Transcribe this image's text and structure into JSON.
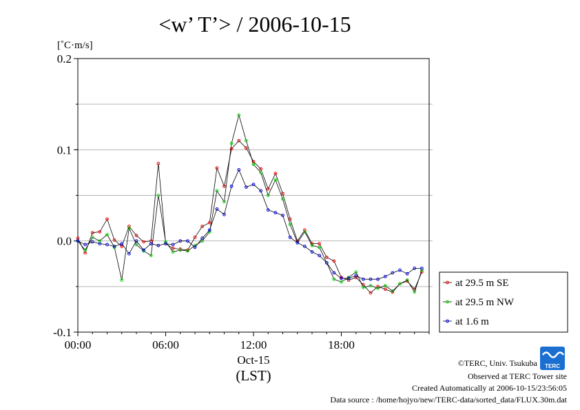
{
  "chart_data": {
    "type": "line",
    "title": "<w’ T’> / 2006-10-15",
    "ylabel": "[˚C·m/s]",
    "xlabel": "(LST)",
    "date_label": "Oct-15",
    "ylim": [
      -0.1,
      0.2
    ],
    "xlim": [
      0,
      24
    ],
    "y_ticks": [
      {
        "value": -0.1,
        "label": "-0.1"
      },
      {
        "value": 0.0,
        "label": "0.0"
      },
      {
        "value": 0.1,
        "label": "0.1"
      },
      {
        "value": 0.2,
        "label": "0.2"
      }
    ],
    "x_ticks": [
      {
        "value": 0,
        "label": "00:00"
      },
      {
        "value": 6,
        "label": "06:00"
      },
      {
        "value": 12,
        "label": "12:00"
      },
      {
        "value": 18,
        "label": "18:00"
      }
    ],
    "grid": true,
    "legend_position": "right",
    "x": [
      0,
      0.5,
      1,
      1.5,
      2,
      2.5,
      3,
      3.5,
      4,
      4.5,
      5,
      5.5,
      6,
      6.5,
      7,
      7.5,
      8,
      8.5,
      9,
      9.5,
      10,
      10.5,
      11,
      11.5,
      12,
      12.5,
      13,
      13.5,
      14,
      14.5,
      15,
      15.5,
      16,
      16.5,
      17,
      17.5,
      18,
      18.5,
      19,
      19.5,
      20,
      20.5,
      21,
      21.5,
      22,
      22.5,
      23,
      23.5
    ],
    "series": [
      {
        "name": "at 29.5 m SE",
        "color": "#ff0000",
        "values": [
          0.003,
          -0.013,
          0.009,
          0.01,
          0.024,
          0.001,
          -0.006,
          0.016,
          0.006,
          -0.001,
          0.0,
          0.085,
          -0.003,
          -0.008,
          -0.009,
          -0.01,
          0.004,
          0.016,
          0.02,
          0.08,
          0.06,
          0.101,
          0.11,
          0.102,
          0.087,
          0.079,
          0.057,
          0.074,
          0.052,
          0.024,
          0.0,
          0.012,
          -0.003,
          -0.003,
          -0.018,
          -0.022,
          -0.04,
          -0.043,
          -0.04,
          -0.048,
          -0.057,
          -0.05,
          -0.053,
          -0.056,
          -0.047,
          -0.044,
          -0.053,
          -0.034
        ]
      },
      {
        "name": "at 29.5 m NW",
        "color": "#00dd00",
        "values": [
          0.0,
          -0.01,
          0.004,
          0.0,
          0.007,
          -0.007,
          -0.043,
          0.014,
          -0.004,
          -0.011,
          -0.016,
          0.05,
          -0.001,
          -0.012,
          -0.01,
          -0.011,
          -0.005,
          0.0,
          0.01,
          0.055,
          0.043,
          0.107,
          0.138,
          0.11,
          0.084,
          0.075,
          0.05,
          0.067,
          0.046,
          0.018,
          -0.002,
          0.01,
          -0.005,
          -0.007,
          -0.024,
          -0.042,
          -0.045,
          -0.04,
          -0.034,
          -0.051,
          -0.049,
          -0.052,
          -0.049,
          -0.055,
          -0.047,
          -0.043,
          -0.056,
          -0.032
        ]
      },
      {
        "name": "at 1.6 m",
        "color": "#0000ee",
        "values": [
          0.0,
          -0.004,
          -0.001,
          -0.003,
          -0.004,
          -0.006,
          -0.003,
          -0.014,
          0.0,
          -0.01,
          -0.003,
          -0.005,
          -0.003,
          -0.004,
          0.0,
          0.0,
          -0.007,
          0.003,
          0.012,
          0.035,
          0.029,
          0.06,
          0.078,
          0.059,
          0.062,
          0.055,
          0.034,
          0.031,
          0.028,
          0.004,
          -0.002,
          -0.006,
          -0.012,
          -0.016,
          -0.024,
          -0.035,
          -0.041,
          -0.041,
          -0.038,
          -0.042,
          -0.042,
          -0.042,
          -0.039,
          -0.035,
          -0.032,
          -0.036,
          -0.03,
          -0.03
        ]
      }
    ]
  },
  "credits": {
    "copyright": "©TERC, Univ. Tsukuba",
    "site": "Observed at TERC Tower site",
    "created": "Created Automatically at 2006-10-15/23:56:05",
    "source": "Data source : /home/hojyo/new/TERC-data/sorted_data/FLUX.30m.dat",
    "logo_text": "TERC"
  }
}
